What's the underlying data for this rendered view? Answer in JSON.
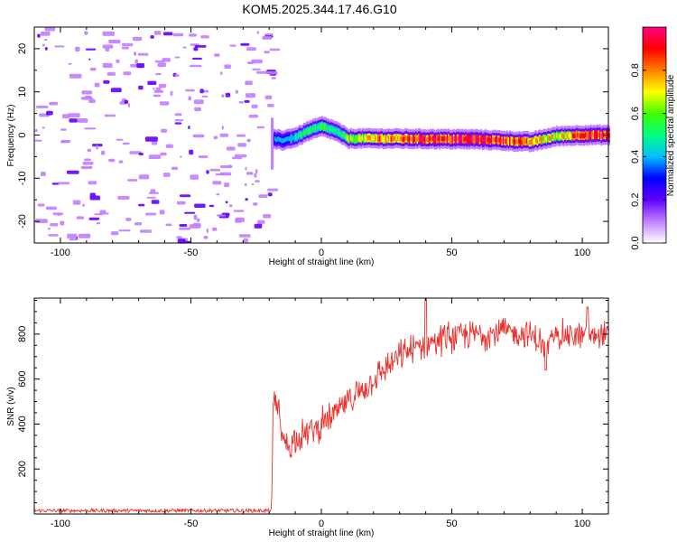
{
  "title": "KOM5.2025.344.17.46.G10",
  "chart_data": [
    {
      "type": "heatmap",
      "name": "spectrogram",
      "xlabel": "Height of straight line (km)",
      "ylabel": "Frequency (Hz)",
      "xlim": [
        -110,
        110
      ],
      "ylim": [
        -25,
        25
      ],
      "xticks": [
        -100,
        -50,
        0,
        50,
        100
      ],
      "yticks": [
        -20,
        -10,
        0,
        10,
        20
      ],
      "signal_start_x": -19,
      "ridge": {
        "x": [
          -19,
          -15,
          -10,
          -5,
          0,
          5,
          10,
          20,
          40,
          60,
          80,
          90,
          100,
          110
        ],
        "frequency": [
          -1.0,
          -1.2,
          -0.5,
          1.0,
          2.0,
          1.0,
          -0.8,
          -0.8,
          -0.9,
          -1.0,
          -1.6,
          -0.3,
          0.0,
          0.0
        ],
        "amplitude": [
          0.3,
          0.3,
          0.4,
          0.5,
          0.5,
          0.4,
          0.55,
          0.7,
          0.85,
          0.9,
          0.75,
          0.6,
          0.85,
          0.8
        ]
      },
      "colorbar": {
        "label": "Normalized spectral amplitude",
        "range": [
          0.0,
          1.0
        ],
        "ticks": [
          0.0,
          0.2,
          0.4,
          0.6,
          0.8
        ],
        "tick_labels": [
          "0.0",
          "0.2",
          "0.4",
          "0.6",
          "0.8"
        ],
        "colors": [
          "#ffffff",
          "#c080ff",
          "#6000ff",
          "#0000ff",
          "#00c0ff",
          "#00ff80",
          "#40ff00",
          "#ffff00",
          "#ff8000",
          "#ff0000",
          "#ff0080"
        ]
      }
    },
    {
      "type": "line",
      "name": "snr",
      "xlabel": "Height of straight line (km)",
      "ylabel": "SNR (v/v)",
      "xlim": [
        -110,
        110
      ],
      "ylim": [
        0,
        960
      ],
      "xticks": [
        -100,
        -50,
        0,
        50,
        100
      ],
      "yticks": [
        200,
        400,
        600,
        800
      ],
      "color": "#e8302c",
      "envelope": {
        "x": [
          -110,
          -19,
          -18.5,
          -17,
          -15,
          -12,
          -10,
          -5,
          0,
          5,
          10,
          20,
          30,
          40,
          50,
          60,
          70,
          80,
          86,
          90,
          100,
          110
        ],
        "y": [
          15,
          15,
          480,
          520,
          330,
          300,
          340,
          360,
          400,
          440,
          500,
          600,
          700,
          760,
          790,
          800,
          810,
          800,
          740,
          800,
          790,
          800
        ]
      },
      "noise_amplitude_before": 8,
      "noise_amplitude_after": 55,
      "spikes": [
        {
          "x": 40,
          "y": 955
        },
        {
          "x": 86,
          "y": 640
        },
        {
          "x": 102,
          "y": 920
        }
      ]
    }
  ]
}
